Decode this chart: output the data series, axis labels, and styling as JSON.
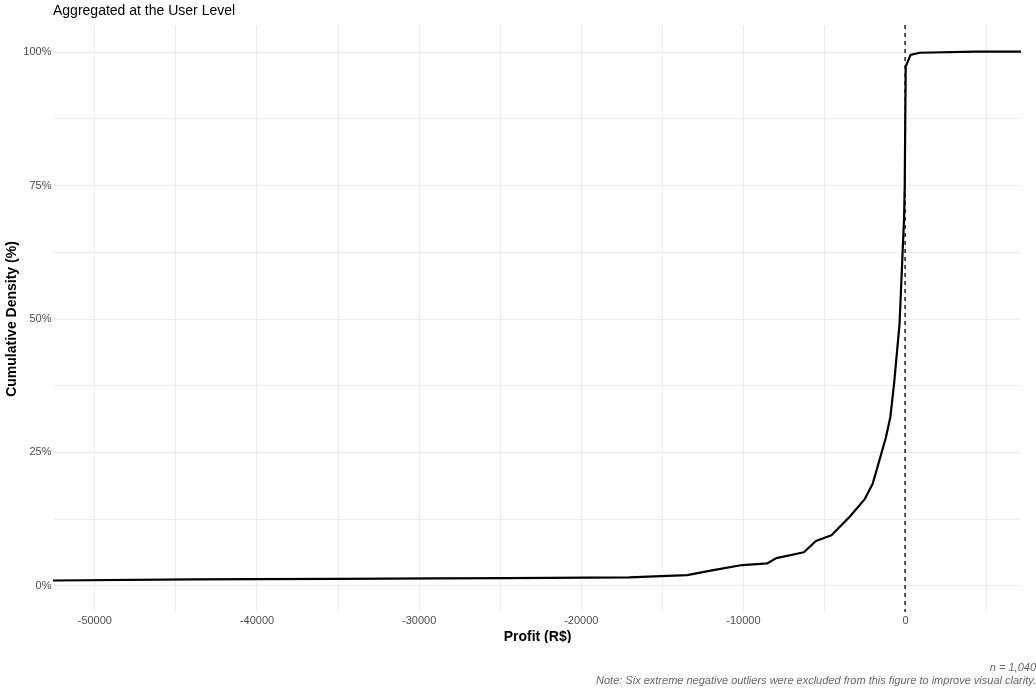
{
  "chart_data": {
    "type": "line",
    "title": "Aggregated at the User Level",
    "xlabel": "Profit (R$)",
    "ylabel": "Cumulative Density (%)",
    "x": [
      -52550,
      -43900,
      -35000,
      -28930,
      -22000,
      -17020,
      -13440,
      -11910,
      -10040,
      -8510,
      -7940,
      -6240,
      -5500,
      -4540,
      -3400,
      -2500,
      -1990,
      -1190,
      -910,
      -680,
      -340,
      -60,
      -20,
      40,
      340,
      900,
      4370,
      7150
    ],
    "series": [
      {
        "color": "#000000",
        "values": [
          0.9,
          1.1,
          1.2,
          1.3,
          1.4,
          1.5,
          1.9,
          2.8,
          3.8,
          4.1,
          5.1,
          6.2,
          8.3,
          9.4,
          12.9,
          16.1,
          19.1,
          27.6,
          31.5,
          37.7,
          49.0,
          69.0,
          75.0,
          97.2,
          99.4,
          99.8,
          100,
          100
        ]
      }
    ],
    "xlim": [
      -52550,
      7150
    ],
    "ylim": [
      -5,
      105
    ],
    "xticks": [
      -50000,
      {
        "value": -45000,
        "label": null
      },
      -40000,
      {
        "value": -35000,
        "label": null
      },
      -30000,
      {
        "value": -25000,
        "label": null
      },
      -20000,
      {
        "value": -15000,
        "label": null
      },
      -10000,
      {
        "value": -5000,
        "label": null
      },
      0,
      {
        "value": 5000,
        "label": null
      }
    ],
    "yticks": [
      {
        "value": 0,
        "label": "0%"
      },
      {
        "value": 12.5,
        "label": null
      },
      {
        "value": 25,
        "label": "25%"
      },
      {
        "value": 37.5,
        "label": null
      },
      {
        "value": 50,
        "label": "50%"
      },
      {
        "value": 62.5,
        "label": null
      },
      {
        "value": 75,
        "label": "75%"
      },
      {
        "value": 87.5,
        "label": null
      },
      {
        "value": 100,
        "label": "100%"
      }
    ],
    "grid": true,
    "line_style": "solid",
    "ref_lines": [
      {
        "axis": "x",
        "value": 0,
        "color": "#000000",
        "line_style": "dashed"
      }
    ],
    "annotations": [
      "n = 1,040",
      "Note: Six extreme negative outliers were excluded from this figure to improve visual clarity."
    ]
  }
}
